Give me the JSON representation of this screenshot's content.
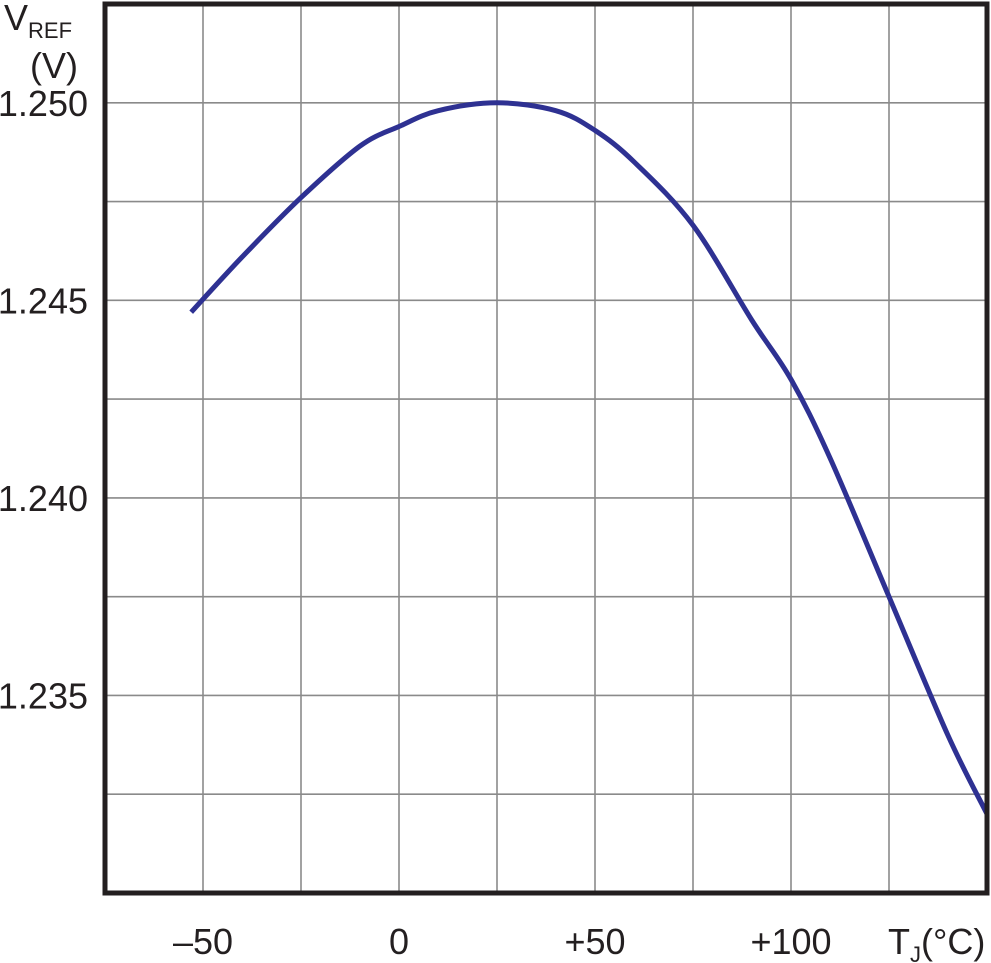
{
  "chart_data": {
    "type": "line",
    "title": "",
    "ylabel": {
      "main": "V",
      "sub": "REF",
      "unit": "(V)"
    },
    "xlabel": {
      "main": "T",
      "sub": "J",
      "unit": "(°C)"
    },
    "x_ticks": [
      {
        "value": -50,
        "label": "–50"
      },
      {
        "value": 0,
        "label": "0"
      },
      {
        "value": 50,
        "label": "+50"
      },
      {
        "value": 100,
        "label": "+100"
      }
    ],
    "y_ticks": [
      {
        "value": 1.235,
        "label": "1.235"
      },
      {
        "value": 1.24,
        "label": "1.240"
      },
      {
        "value": 1.245,
        "label": "1.245"
      },
      {
        "value": 1.25,
        "label": "1.250"
      }
    ],
    "xlim": [
      -75,
      150
    ],
    "ylim": [
      1.23,
      1.2525
    ],
    "grid": true,
    "series": [
      {
        "color": "#2e3192",
        "x": [
          -53,
          -40,
          -25,
          -10,
          0,
          10,
          25,
          40,
          50,
          60,
          75,
          90,
          100,
          110,
          125,
          140,
          150
        ],
        "y": [
          1.2447,
          1.2461,
          1.2476,
          1.2489,
          1.2494,
          1.2498,
          1.25,
          1.2498,
          1.2493,
          1.2485,
          1.2469,
          1.2445,
          1.243,
          1.241,
          1.2375,
          1.234,
          1.232
        ]
      }
    ]
  }
}
